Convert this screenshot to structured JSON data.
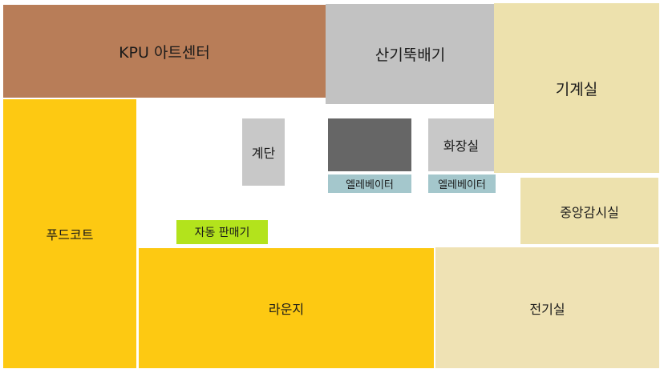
{
  "rooms": {
    "art_center": "KPU 아트센터",
    "sangi": "산기뚝배기",
    "machine": "기계실",
    "foodcourt": "푸드코트",
    "stairs": "계단",
    "restroom": "화장실",
    "elevator_1": "엘레베이터",
    "elevator_2": "엘레베이터",
    "control": "중앙감시실",
    "vending": "자동 판매기",
    "lounge": "라운지",
    "electric": "전기실"
  },
  "colors": {
    "art_center": "#b87d58",
    "sangi": "#c2c2c2",
    "machine": "#ede1ad",
    "foodcourt": "#fdc912",
    "stairs": "#c8c8c8",
    "elevator_shaft": "#666666",
    "restroom": "#c8c8c8",
    "elevator_label": "#a4c7cc",
    "control": "#ede1ad",
    "vending": "#b3e31c",
    "lounge": "#fdc912",
    "electric": "#efe2b4"
  }
}
